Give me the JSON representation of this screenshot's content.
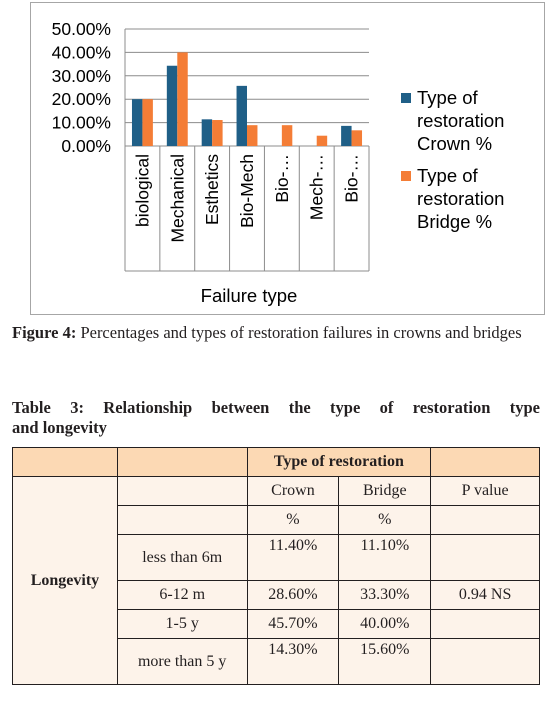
{
  "chart_data": {
    "type": "bar",
    "categories": [
      "biological",
      "Mechanical",
      "Esthetics",
      "Bio-Mech",
      "Bio-…",
      "Mech-…",
      "Bio-…"
    ],
    "series": [
      {
        "name_lines": [
          "Type of",
          "restoration",
          "Crown %"
        ],
        "color": "#1f5f87",
        "values": [
          20.0,
          34.3,
          11.4,
          25.7,
          0,
          0,
          8.6
        ]
      },
      {
        "name_lines": [
          "Type of",
          "restoration",
          "Bridge %"
        ],
        "color": "#f47d36",
        "values": [
          20.0,
          40.0,
          11.1,
          8.9,
          8.9,
          4.4,
          6.7
        ]
      }
    ],
    "y_ticks": [
      "0.00%",
      "10.00%",
      "20.00%",
      "30.00%",
      "40.00%",
      "50.00%"
    ],
    "ylim": [
      0,
      50
    ],
    "xlabel": "Failure type",
    "ylabel": "",
    "grid": true,
    "legend": "right"
  },
  "figure_caption": {
    "label": "Figure 4:",
    "text": " Percentages and types of restoration failures in crowns and bridges"
  },
  "table_title": {
    "line1": "Table 3: Relationship between the type of restoration type",
    "line2": "and longevity"
  },
  "table": {
    "group_header": "Type of restoration",
    "col_crown": "Crown",
    "col_bridge": "Bridge",
    "col_p": "P value",
    "unit_crown": "%",
    "unit_bridge": "%",
    "row_label": "Longevity",
    "rows": [
      {
        "label": "less than 6m",
        "crown": "11.40%",
        "bridge": "11.10%",
        "p": ""
      },
      {
        "label": "6-12 m",
        "crown": "28.60%",
        "bridge": "33.30%",
        "p": "0.94 NS"
      },
      {
        "label": "1-5 y",
        "crown": "45.70%",
        "bridge": "40.00%",
        "p": ""
      },
      {
        "label": "more than 5 y",
        "crown": "14.30%",
        "bridge": "15.60%",
        "p": ""
      }
    ]
  }
}
